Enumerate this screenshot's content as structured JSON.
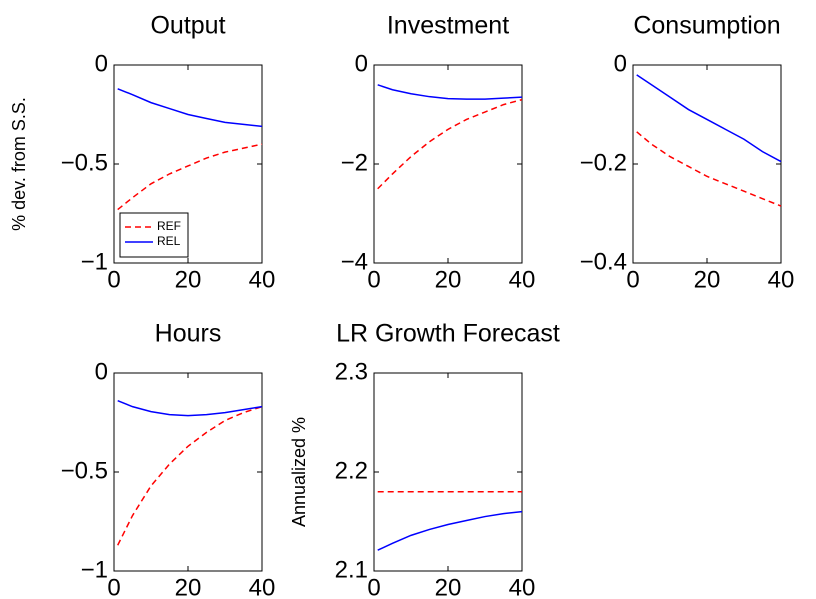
{
  "chart_data": [
    {
      "type": "line",
      "title": "Output",
      "ylabel": "% dev. from S.S.",
      "legend": "lower left",
      "x": [
        1,
        5,
        10,
        15,
        20,
        25,
        30,
        35,
        40
      ],
      "series": [
        {
          "name": "REF",
          "color": "#ff0000",
          "linestyle": "dashed",
          "values": [
            -0.73,
            -0.67,
            -0.6,
            -0.55,
            -0.51,
            -0.47,
            -0.44,
            -0.42,
            -0.4
          ]
        },
        {
          "name": "REL",
          "color": "#0000ff",
          "linestyle": "solid",
          "values": [
            -0.12,
            -0.15,
            -0.19,
            -0.22,
            -0.25,
            -0.27,
            -0.29,
            -0.3,
            -0.31
          ]
        }
      ],
      "xlim": [
        0,
        40
      ],
      "xticks": [
        0,
        20,
        40
      ],
      "ylim": [
        -1,
        0
      ],
      "yticks": [
        {
          "value": -1,
          "label": "−1"
        },
        {
          "value": -0.5,
          "label": "−0.5"
        },
        0
      ]
    },
    {
      "type": "line",
      "title": "Investment",
      "x": [
        1,
        5,
        10,
        15,
        20,
        25,
        30,
        35,
        40
      ],
      "series": [
        {
          "color": "#ff0000",
          "linestyle": "dashed",
          "values": [
            -2.5,
            -2.2,
            -1.85,
            -1.55,
            -1.3,
            -1.1,
            -0.95,
            -0.8,
            -0.7
          ]
        },
        {
          "color": "#0000ff",
          "linestyle": "solid",
          "values": [
            -0.4,
            -0.5,
            -0.58,
            -0.64,
            -0.68,
            -0.69,
            -0.69,
            -0.67,
            -0.65
          ]
        }
      ],
      "xlim": [
        0,
        40
      ],
      "xticks": [
        0,
        20,
        40
      ],
      "ylim": [
        -4,
        0
      ],
      "yticks": [
        {
          "value": -4,
          "label": "−4"
        },
        {
          "value": -2,
          "label": "−2"
        },
        0
      ]
    },
    {
      "type": "line",
      "title": "Consumption",
      "x": [
        1,
        5,
        10,
        15,
        20,
        25,
        30,
        35,
        40
      ],
      "series": [
        {
          "color": "#ff0000",
          "linestyle": "dashed",
          "values": [
            -0.135,
            -0.16,
            -0.185,
            -0.205,
            -0.225,
            -0.24,
            -0.255,
            -0.27,
            -0.285
          ]
        },
        {
          "color": "#0000ff",
          "linestyle": "solid",
          "values": [
            -0.02,
            -0.04,
            -0.065,
            -0.09,
            -0.11,
            -0.13,
            -0.15,
            -0.175,
            -0.195
          ]
        }
      ],
      "xlim": [
        0,
        40
      ],
      "xticks": [
        0,
        20,
        40
      ],
      "ylim": [
        -0.4,
        0
      ],
      "yticks": [
        {
          "value": -0.4,
          "label": "−0.4"
        },
        {
          "value": -0.2,
          "label": "−0.2"
        },
        0
      ]
    },
    {
      "type": "line",
      "title": "Hours",
      "x": [
        1,
        5,
        10,
        15,
        20,
        25,
        30,
        35,
        40
      ],
      "series": [
        {
          "color": "#ff0000",
          "linestyle": "dashed",
          "values": [
            -0.87,
            -0.72,
            -0.57,
            -0.46,
            -0.37,
            -0.3,
            -0.24,
            -0.2,
            -0.17
          ]
        },
        {
          "color": "#0000ff",
          "linestyle": "solid",
          "values": [
            -0.14,
            -0.17,
            -0.195,
            -0.21,
            -0.215,
            -0.21,
            -0.2,
            -0.185,
            -0.17
          ]
        }
      ],
      "xlim": [
        0,
        40
      ],
      "xticks": [
        0,
        20,
        40
      ],
      "ylim": [
        -1,
        0
      ],
      "yticks": [
        {
          "value": -1,
          "label": "−1"
        },
        {
          "value": -0.5,
          "label": "−0.5"
        },
        0
      ]
    },
    {
      "type": "line",
      "title": "LR Growth Forecast",
      "ylabel": "Annualized %",
      "x": [
        1,
        5,
        10,
        15,
        20,
        25,
        30,
        35,
        40
      ],
      "series": [
        {
          "color": "#ff0000",
          "linestyle": "dashed",
          "values": [
            2.18,
            2.18,
            2.18,
            2.18,
            2.18,
            2.18,
            2.18,
            2.18,
            2.18
          ]
        },
        {
          "color": "#0000ff",
          "linestyle": "solid",
          "values": [
            2.121,
            2.128,
            2.136,
            2.142,
            2.147,
            2.151,
            2.155,
            2.158,
            2.16
          ]
        }
      ],
      "xlim": [
        0,
        40
      ],
      "xticks": [
        0,
        20,
        40
      ],
      "ylim": [
        2.1,
        2.3
      ],
      "yticks": [
        2.1,
        2.2,
        2.3
      ]
    }
  ]
}
